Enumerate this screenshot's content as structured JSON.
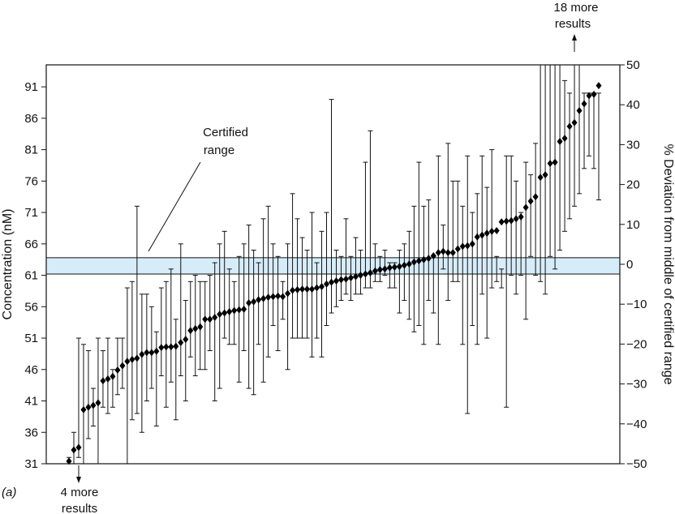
{
  "chart_data": {
    "type": "scatter",
    "panel_label": "(a)",
    "y_left": {
      "label": "Concentration (nM)",
      "ticks": [
        "31",
        "36",
        "41",
        "46",
        "51",
        "56",
        "61",
        "66",
        "71",
        "76",
        "81",
        "86",
        "91"
      ],
      "ylim": [
        31,
        94.5
      ]
    },
    "y_right": {
      "label": "% Deviation from middle of certified range",
      "ticks": [
        "−50",
        "−40",
        "−30",
        "−20",
        "−10",
        "0",
        "10",
        "20",
        "30",
        "40",
        "50"
      ],
      "ylim": [
        -50,
        50
      ]
    },
    "certified_range": {
      "label_line1": "Certified",
      "label_line2": "range",
      "low": 61.2,
      "high": 63.8
    },
    "annotations": {
      "top_line1": "18 more",
      "top_line2": "results",
      "bottom_line1": "4 more",
      "bottom_line2": "results"
    },
    "series": [
      {
        "values": [
          31.4,
          33.2,
          33.6,
          39.6,
          40,
          40.3,
          40.7,
          44.2,
          44.5,
          44.9,
          45.9,
          46.6,
          47.3,
          47.6,
          47.8,
          48.4,
          48.7,
          48.7,
          48.9,
          49.5,
          49.6,
          49.6,
          49.7,
          50.3,
          50.8,
          52.2,
          52.5,
          52.8,
          54,
          54,
          54.3,
          54.8,
          55,
          55.2,
          55.4,
          55.5,
          55.6,
          56.6,
          56.8,
          57.1,
          57.3,
          57.5,
          57.6,
          57.7,
          57.6,
          58.1,
          58.6,
          58.7,
          58.8,
          58.8,
          58.8,
          59,
          59.2,
          59.6,
          59.9,
          60.1,
          60.3,
          60.4,
          60.6,
          60.8,
          61,
          61.2,
          61.4,
          61.7,
          61.9,
          62,
          62.2,
          62.3,
          62.4,
          62.6,
          62.8,
          63.1,
          63.3,
          63.5,
          63.7,
          64.1,
          64.6,
          64.8,
          64.6,
          64.6,
          65.2,
          65.6,
          65.7,
          66,
          67.1,
          67.4,
          67.7,
          68,
          68.1,
          69.5,
          69.6,
          69.7,
          70,
          70.3,
          71.8,
          72.8,
          73.5,
          76.6,
          77,
          78.8,
          79,
          82.3,
          82.8,
          84.7,
          85.3,
          87.2,
          88.3,
          89.6,
          89.8,
          91.2
        ],
        "error_low": [
          31,
          31,
          32,
          31,
          35,
          37,
          31,
          40,
          39,
          40,
          42,
          43,
          31,
          38,
          39,
          36,
          41,
          43,
          37,
          45,
          40,
          44,
          38,
          45,
          41,
          48,
          45,
          46,
          46,
          49,
          41,
          43,
          51,
          50,
          50,
          44,
          49,
          43,
          42,
          50,
          44,
          48,
          53,
          49,
          54,
          46,
          51,
          51,
          51,
          51,
          48,
          51,
          48,
          53,
          55,
          56,
          57,
          58,
          57,
          58,
          58,
          59,
          59,
          60,
          60,
          61,
          59,
          59,
          55,
          57,
          54,
          52,
          53,
          50,
          57,
          55,
          50,
          62,
          57,
          60,
          60,
          50,
          39,
          53,
          50,
          58,
          51,
          59,
          60,
          59,
          40,
          61,
          58,
          61,
          54,
          64,
          61,
          60,
          58,
          64,
          62,
          65,
          68,
          70,
          72,
          74,
          78,
          80,
          78,
          73
        ],
        "error_high": [
          32,
          36,
          51,
          50,
          49,
          43,
          51,
          49,
          51,
          46,
          51,
          51,
          59,
          60,
          72,
          58,
          58,
          56,
          52,
          59,
          60,
          62,
          54,
          66,
          57,
          60,
          61,
          60,
          60,
          61,
          63,
          66,
          68,
          62,
          60,
          64,
          66,
          69,
          65,
          63,
          70,
          72,
          66,
          64,
          60,
          66,
          74,
          70,
          67,
          65,
          71,
          63,
          68,
          71,
          89,
          65,
          64,
          70,
          64,
          67,
          65,
          79,
          84,
          66,
          64,
          65,
          63,
          63,
          65,
          66,
          68,
          72,
          79,
          72,
          73,
          64,
          80,
          69,
          82,
          76,
          76,
          72,
          80,
          71,
          74,
          80,
          75,
          81,
          64,
          62,
          80,
          80,
          76,
          71,
          79,
          77,
          82,
          95,
          95,
          95,
          95,
          95,
          92,
          90,
          95,
          95,
          90,
          90,
          90,
          90
        ]
      }
    ]
  }
}
